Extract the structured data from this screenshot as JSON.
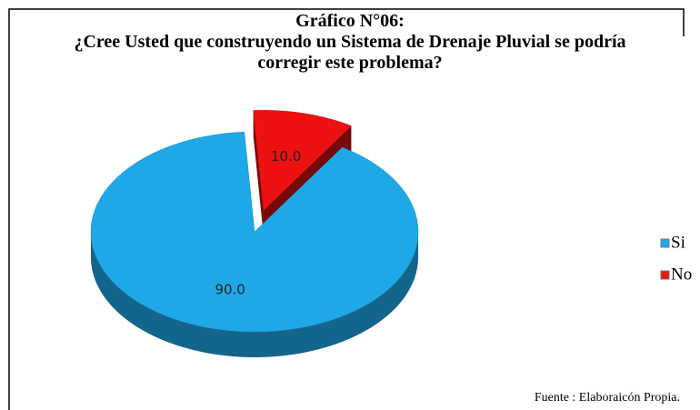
{
  "chart_data": {
    "type": "pie",
    "title": "Gráfico N°06:",
    "subtitle": "¿Cree Usted que construyendo un Sistema de Drenaje Pluvial se podría corregir este problema?",
    "categories": [
      "Si",
      "No"
    ],
    "values": [
      90,
      10
    ],
    "value_labels": [
      "90.0",
      "10.0"
    ],
    "colors": [
      "#1fa8e8",
      "#ee1111"
    ],
    "exploded": [
      false,
      true
    ],
    "source": "Fuente : Elaboraicón Propia."
  }
}
